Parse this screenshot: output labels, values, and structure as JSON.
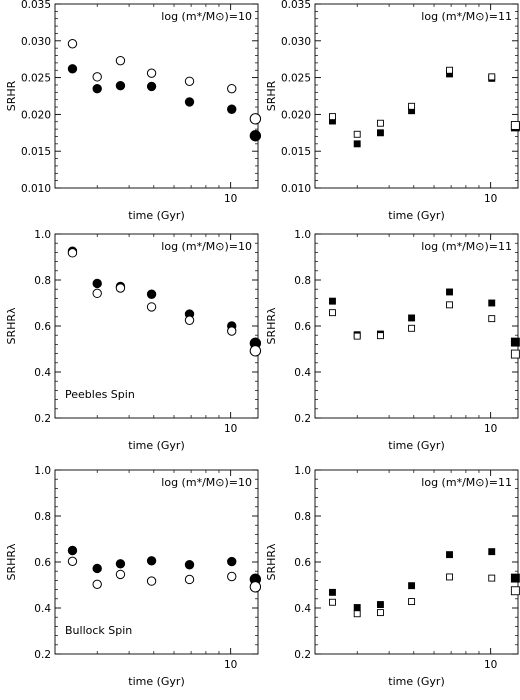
{
  "chart_data": [
    {
      "type": "scatter",
      "ylabel": "SRHR",
      "xlabel": "time (Gyr)",
      "annotation": "log (m*/M⊙)=10",
      "inner_label": "",
      "xscale": "log",
      "xlim": [
        2.05,
        12.8
      ],
      "ylim": [
        0.01,
        0.035
      ],
      "yticks": [
        0.01,
        0.015,
        0.02,
        0.025,
        0.03,
        0.035
      ],
      "ytick_labels": [
        "0.010",
        "0.015",
        "0.020",
        "0.025",
        "0.030",
        "0.035"
      ],
      "xtick_labels": [
        "10"
      ],
      "marker": "circle",
      "series": [
        {
          "style": "filled",
          "x": [
            2.4,
            3.0,
            3.7,
            4.9,
            6.9,
            10.1,
            12.5
          ],
          "y": [
            0.0262,
            0.0235,
            0.0239,
            0.0238,
            0.0217,
            0.0207,
            0.0171
          ]
        },
        {
          "style": "open",
          "x": [
            2.4,
            3.0,
            3.7,
            4.9,
            6.9,
            10.1,
            12.5
          ],
          "y": [
            0.0296,
            0.0251,
            0.0273,
            0.0256,
            0.0245,
            0.0235,
            0.0194
          ]
        }
      ]
    },
    {
      "type": "scatter",
      "ylabel": "SRHR",
      "xlabel": "time (Gyr)",
      "annotation": "log (m*/M⊙)=11",
      "inner_label": "",
      "xscale": "log",
      "xlim": [
        2.05,
        12.8
      ],
      "ylim": [
        0.01,
        0.035
      ],
      "yticks": [
        0.01,
        0.015,
        0.02,
        0.025,
        0.03,
        0.035
      ],
      "ytick_labels": [
        "0.010",
        "0.015",
        "0.020",
        "0.025",
        "0.030",
        "0.035"
      ],
      "xtick_labels": [
        "10"
      ],
      "marker": "square",
      "series": [
        {
          "style": "filled",
          "x": [
            2.4,
            3.0,
            3.7,
            4.9,
            6.9,
            10.1,
            12.5
          ],
          "y": [
            0.0191,
            0.016,
            0.0175,
            0.0205,
            0.0255,
            0.0249,
            0.0183
          ]
        },
        {
          "style": "open",
          "x": [
            2.4,
            3.0,
            3.7,
            4.9,
            6.9,
            10.1,
            12.5
          ],
          "y": [
            0.0197,
            0.0173,
            0.0188,
            0.0211,
            0.026,
            0.0251,
            0.0185
          ]
        }
      ]
    },
    {
      "type": "scatter",
      "ylabel": "SRHRλ",
      "xlabel": "time (Gyr)",
      "annotation": "log (m*/M⊙)=10",
      "inner_label": "Peebles Spin",
      "xscale": "log",
      "xlim": [
        2.05,
        12.8
      ],
      "ylim": [
        0.2,
        1.0
      ],
      "yticks": [
        0.2,
        0.4,
        0.6,
        0.8,
        1.0
      ],
      "ytick_labels": [
        "0.2",
        "0.4",
        "0.6",
        "0.8",
        "1.0"
      ],
      "xtick_labels": [
        "10"
      ],
      "marker": "circle",
      "series": [
        {
          "style": "filled",
          "x": [
            2.4,
            3.0,
            3.7,
            4.9,
            6.9,
            10.1,
            12.5
          ],
          "y": [
            0.925,
            0.785,
            0.772,
            0.738,
            0.652,
            0.6,
            0.525
          ]
        },
        {
          "style": "open",
          "x": [
            2.4,
            3.0,
            3.7,
            4.9,
            6.9,
            10.1,
            12.5
          ],
          "y": [
            0.918,
            0.742,
            0.765,
            0.683,
            0.625,
            0.578,
            0.492
          ]
        }
      ]
    },
    {
      "type": "scatter",
      "ylabel": "SRHRλ",
      "xlabel": "time (Gyr)",
      "annotation": "log (m*/M⊙)=11",
      "inner_label": "",
      "xscale": "log",
      "xlim": [
        2.05,
        12.8
      ],
      "ylim": [
        0.2,
        1.0
      ],
      "yticks": [
        0.2,
        0.4,
        0.6,
        0.8,
        1.0
      ],
      "ytick_labels": [
        "0.2",
        "0.4",
        "0.6",
        "0.8",
        "1.0"
      ],
      "xtick_labels": [
        "10"
      ],
      "marker": "square",
      "series": [
        {
          "style": "filled",
          "x": [
            2.4,
            3.0,
            3.7,
            4.9,
            6.9,
            10.1,
            12.5
          ],
          "y": [
            0.708,
            0.562,
            0.565,
            0.635,
            0.748,
            0.7,
            0.53
          ]
        },
        {
          "style": "open",
          "x": [
            2.4,
            3.0,
            3.7,
            4.9,
            6.9,
            10.1,
            12.5
          ],
          "y": [
            0.658,
            0.556,
            0.558,
            0.59,
            0.692,
            0.632,
            0.478
          ]
        }
      ]
    },
    {
      "type": "scatter",
      "ylabel": "SRHRλ",
      "xlabel": "time (Gyr)",
      "annotation": "log (m*/M⊙)=10",
      "inner_label": "Bullock Spin",
      "xscale": "log",
      "xlim": [
        2.05,
        12.8
      ],
      "ylim": [
        0.2,
        1.0
      ],
      "yticks": [
        0.2,
        0.4,
        0.6,
        0.8,
        1.0
      ],
      "ytick_labels": [
        "0.2",
        "0.4",
        "0.6",
        "0.8",
        "1.0"
      ],
      "xtick_labels": [
        "10"
      ],
      "marker": "circle",
      "series": [
        {
          "style": "filled",
          "x": [
            2.4,
            3.0,
            3.7,
            4.9,
            6.9,
            10.1,
            12.5
          ],
          "y": [
            0.65,
            0.572,
            0.592,
            0.605,
            0.588,
            0.602,
            0.525
          ]
        },
        {
          "style": "open",
          "x": [
            2.4,
            3.0,
            3.7,
            4.9,
            6.9,
            10.1,
            12.5
          ],
          "y": [
            0.603,
            0.503,
            0.546,
            0.517,
            0.524,
            0.537,
            0.492
          ]
        }
      ]
    },
    {
      "type": "scatter",
      "ylabel": "SRHRλ",
      "xlabel": "time (Gyr)",
      "annotation": "log (m*/M⊙)=11",
      "inner_label": "",
      "xscale": "log",
      "xlim": [
        2.05,
        12.8
      ],
      "ylim": [
        0.2,
        1.0
      ],
      "yticks": [
        0.2,
        0.4,
        0.6,
        0.8,
        1.0
      ],
      "ytick_labels": [
        "0.2",
        "0.4",
        "0.6",
        "0.8",
        "1.0"
      ],
      "xtick_labels": [
        "10"
      ],
      "marker": "square",
      "series": [
        {
          "style": "filled",
          "x": [
            2.4,
            3.0,
            3.7,
            4.9,
            6.9,
            10.1,
            12.5
          ],
          "y": [
            0.468,
            0.402,
            0.415,
            0.497,
            0.632,
            0.645,
            0.53
          ]
        },
        {
          "style": "open",
          "x": [
            2.4,
            3.0,
            3.7,
            4.9,
            6.9,
            10.1,
            12.5
          ],
          "y": [
            0.425,
            0.375,
            0.38,
            0.428,
            0.535,
            0.53,
            0.475
          ]
        }
      ]
    }
  ]
}
